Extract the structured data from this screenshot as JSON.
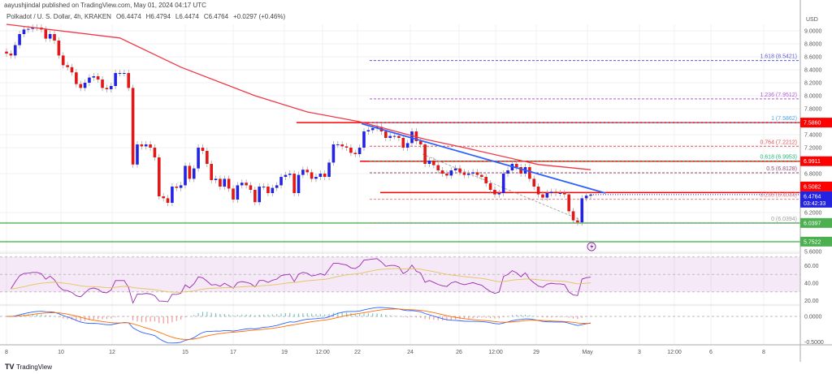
{
  "header": {
    "publisher": "aayushjindal published on TradingView.com, May 01, 2024 04:17 UTC",
    "symbol": "Polkadot / U. S. Dollar, 4h, KRAKEN",
    "open": "O6.4474",
    "high": "H6.4794",
    "low": "L6.4474",
    "close": "C6.4764",
    "change": "+0.0297 (+0.46%)"
  },
  "footer": {
    "brand": "TradingView"
  },
  "colors": {
    "up": "#2424e0",
    "down": "#e01818",
    "sma": "#f23645",
    "trendline": "#2962ff",
    "support": "#4caf50",
    "resistance": "#ff0000",
    "rsi": "#9c27b0",
    "rsi_ma": "#e5c35a",
    "macd": "#2962ff",
    "signal": "#ff6d00"
  },
  "chart_data": {
    "type": "candlestick",
    "currency": "USD",
    "price_ticks": [
      "9.0000",
      "8.8000",
      "8.6000",
      "8.4000",
      "8.2000",
      "8.0000",
      "7.8000",
      "7.4000",
      "7.2000",
      "6.8000",
      "6.2000",
      "5.6000"
    ],
    "x_ticks": [
      "8",
      "10",
      "12",
      "15",
      "17",
      "19",
      "12:00",
      "22",
      "24",
      "26",
      "12:00",
      "29",
      "May",
      "3",
      "12:00",
      "6",
      "8"
    ],
    "closes": [
      8.65,
      8.62,
      8.78,
      8.95,
      9.02,
      9.03,
      9.05,
      9.05,
      9.02,
      8.88,
      8.95,
      8.85,
      8.62,
      8.47,
      8.44,
      8.36,
      8.18,
      8.12,
      8.2,
      8.28,
      8.3,
      8.25,
      8.12,
      8.1,
      8.15,
      8.35,
      8.35,
      8.35,
      8.12,
      6.94,
      7.25,
      7.22,
      7.25,
      7.2,
      7.05,
      6.45,
      6.42,
      6.35,
      6.6,
      6.58,
      6.62,
      6.92,
      6.72,
      6.88,
      7.2,
      7.15,
      6.95,
      6.7,
      6.72,
      6.6,
      6.72,
      6.57,
      6.4,
      6.62,
      6.66,
      6.62,
      6.55,
      6.36,
      6.6,
      6.6,
      6.5,
      6.58,
      6.62,
      6.75,
      6.78,
      6.8,
      6.5,
      6.78,
      6.86,
      6.82,
      6.72,
      6.75,
      6.8,
      6.75,
      6.97,
      7.25,
      7.25,
      7.22,
      7.2,
      7.12,
      7.1,
      7.2,
      7.45,
      7.47,
      7.5,
      7.52,
      7.45,
      7.35,
      7.38,
      7.38,
      7.35,
      7.2,
      7.27,
      7.45,
      7.3,
      7.25,
      6.95,
      7.0,
      6.93,
      6.85,
      6.8,
      6.77,
      6.85,
      6.88,
      6.82,
      6.78,
      6.8,
      6.82,
      6.78,
      6.75,
      6.65,
      6.55,
      6.48,
      6.5,
      6.8,
      6.85,
      6.95,
      6.9,
      6.8,
      6.9,
      6.72,
      6.6,
      6.48,
      6.43,
      6.5,
      6.52,
      6.5,
      6.5,
      6.48,
      6.22,
      6.08,
      6.05,
      6.42,
      6.46,
      6.4764
    ],
    "sma_100": [
      [
        0,
        9.1
      ],
      [
        26,
        8.89
      ],
      [
        40,
        8.44
      ],
      [
        57,
        8.0
      ],
      [
        69,
        7.75
      ],
      [
        81,
        7.6
      ],
      [
        96,
        7.33
      ],
      [
        105,
        7.2
      ],
      [
        122,
        6.94
      ],
      [
        134,
        6.86
      ]
    ],
    "horizontal_levels": [
      {
        "price": 7.586,
        "label": "7.5860",
        "color": "#ff0000"
      },
      {
        "price": 6.9911,
        "label": "6.9911",
        "color": "#ff0000"
      },
      {
        "price": 6.5082,
        "label": "6.5082",
        "color": "#ff0000"
      },
      {
        "price": 6.0397,
        "label": "6.0397",
        "color": "#4caf50"
      },
      {
        "price": 5.7522,
        "label": "5.7522",
        "color": "#4caf50"
      }
    ],
    "last_price": {
      "label": "6.4764",
      "countdown": "03:42:33",
      "price": 6.4764
    },
    "trendline": {
      "from": 7.57,
      "to": 6.5
    },
    "fibonacci": [
      {
        "level": "0",
        "price": 6.0394,
        "label": "0 (6.0394)",
        "color": "#9e9e9e"
      },
      {
        "level": "0.236",
        "price": 6.4044,
        "label": "0.236 (6.4044)",
        "color": "#f08080"
      },
      {
        "level": "0.5",
        "price": 6.8128,
        "label": "0.5 (6.8128)",
        "color": "#8d4a73"
      },
      {
        "level": "0.618",
        "price": 6.9953,
        "label": "0.618 (6.9953)",
        "color": "#22b573"
      },
      {
        "level": "0.764",
        "price": 7.2212,
        "label": "0.764 (7.2212)",
        "color": "#e0525a"
      },
      {
        "level": "1",
        "price": 7.5862,
        "label": "1 (7.5862)",
        "color": "#4fa3e0"
      },
      {
        "level": "1.236",
        "price": 7.9512,
        "label": "1.236 (7.9512)",
        "color": "#b05ad6"
      },
      {
        "level": "1.618",
        "price": 8.5421,
        "label": "1.618 (8.5421)",
        "color": "#5b5bd6"
      }
    ],
    "rsi": {
      "ticks": [
        "60.00",
        "40.00",
        "20.00"
      ],
      "band": [
        30,
        70
      ]
    },
    "macd": {
      "ticks": [
        "0.0000",
        "-0.5000"
      ]
    }
  }
}
